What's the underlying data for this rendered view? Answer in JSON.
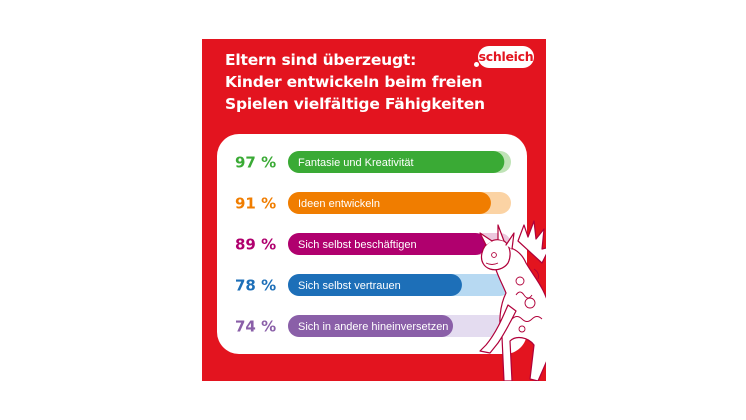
{
  "header": {
    "title_lines": [
      "Eltern sind überzeugt:",
      "Kinder entwickeln beim freien",
      "Spielen vielfältige Fähigkeiten"
    ],
    "brand": "schleich"
  },
  "colors": {
    "background": "#e3141f",
    "panel": "#ffffff"
  },
  "chart_data": {
    "type": "bar",
    "orientation": "horizontal",
    "title": "Eltern sind überzeugt: Kinder entwickeln beim freien Spielen vielfältige Fähigkeiten",
    "unit": "%",
    "xlim": [
      0,
      100
    ],
    "grid": false,
    "legend": "none",
    "categories": [
      "Fantasie und Kreativität",
      "Ideen entwickeln",
      "Sich selbst beschäftigen",
      "Sich selbst vertrauen",
      "Sich in andere hineinversetzen"
    ],
    "values": [
      97,
      91,
      89,
      78,
      74
    ],
    "value_labels": [
      "97 %",
      "91 %",
      "89 %",
      "78 %",
      "74 %"
    ],
    "colors": [
      "#3aaa35",
      "#f07d00",
      "#b0006e",
      "#1d6fb8",
      "#8a5fa8"
    ],
    "track_colors": [
      "#bfe3b6",
      "#fbd3a4",
      "#ecc7dd",
      "#b7d9f2",
      "#e4dcf0"
    ]
  }
}
